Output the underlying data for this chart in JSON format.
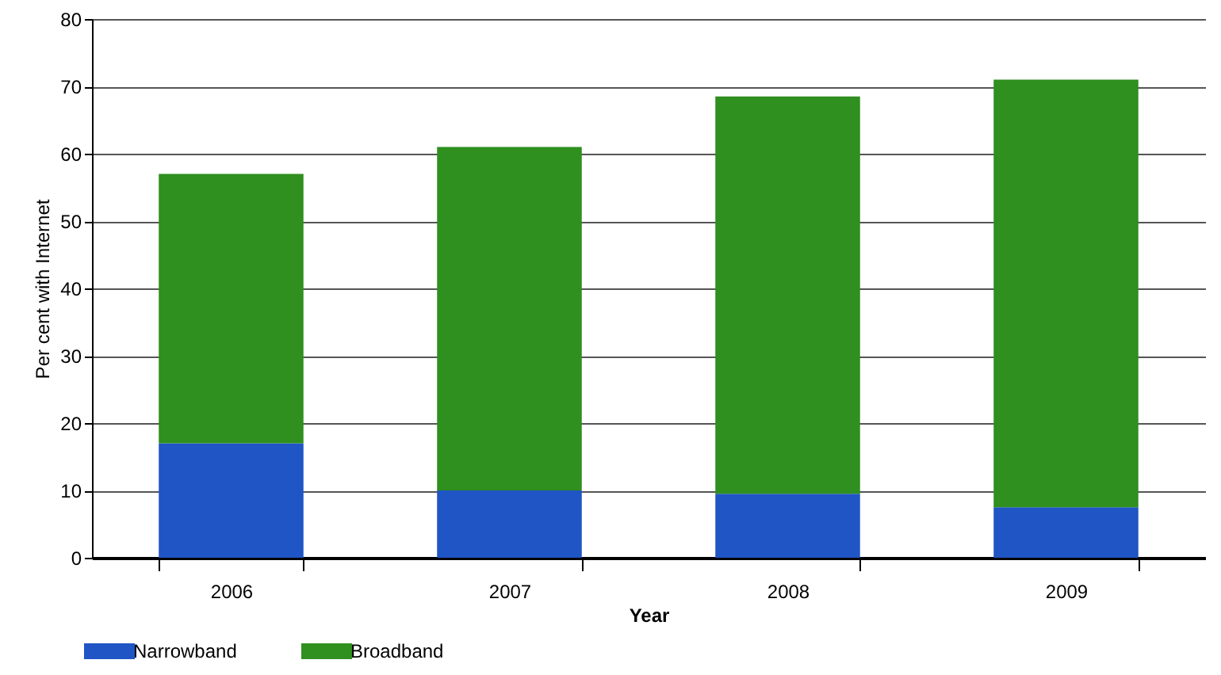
{
  "chart_data": {
    "type": "bar",
    "stacked": true,
    "xlabel": "Year",
    "ylabel": "Per cent with Internet",
    "categories": [
      "2006",
      "2007",
      "2008",
      "2009"
    ],
    "series": [
      {
        "name": "Narrowband",
        "color": "#1f55c4",
        "values": [
          17,
          10,
          9.5,
          7.5
        ]
      },
      {
        "name": "Broadband",
        "color": "#2f8f1f",
        "values": [
          40,
          51,
          59,
          63.5
        ]
      }
    ],
    "ylim": [
      0,
      80
    ],
    "yticks": [
      0,
      10,
      20,
      30,
      40,
      50,
      60,
      70,
      80
    ],
    "grid": "y",
    "legend": "bottom"
  }
}
